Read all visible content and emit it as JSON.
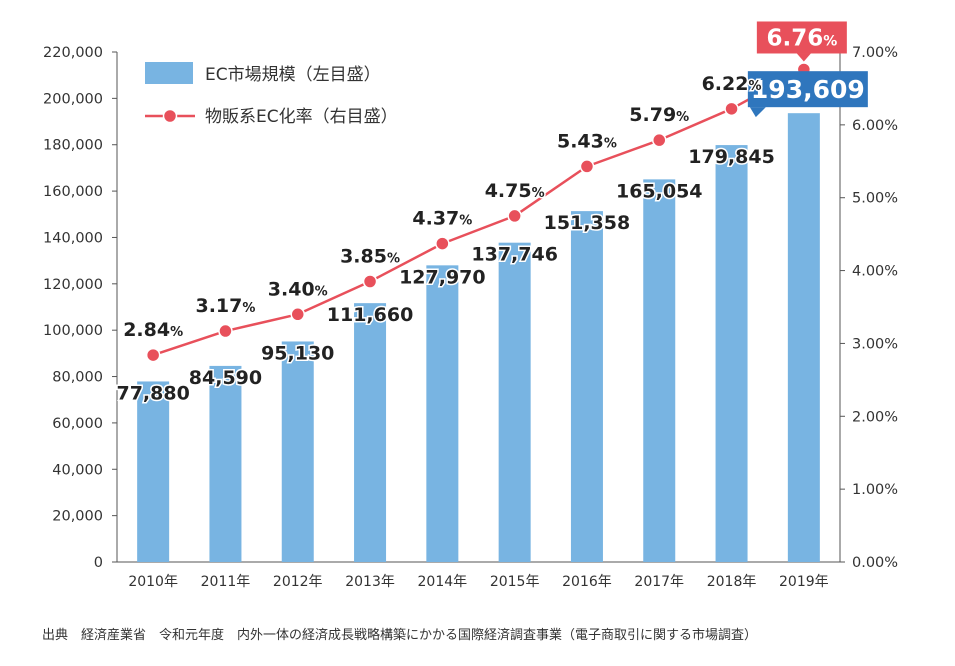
{
  "chart_data": {
    "type": "bar",
    "categories": [
      "2010年",
      "2011年",
      "2012年",
      "2013年",
      "2014年",
      "2015年",
      "2016年",
      "2017年",
      "2018年",
      "2019年"
    ],
    "series": [
      {
        "name": "EC市場規模（左目盛）",
        "type": "bar",
        "axis": "left",
        "values": [
          77880,
          84590,
          95130,
          111660,
          127970,
          137746,
          151358,
          165054,
          179845,
          193609
        ],
        "value_labels": [
          "77,880",
          "84,590",
          "95,130",
          "111,660",
          "127,970",
          "137,746",
          "151,358",
          "165,054",
          "179,845",
          "193,609"
        ],
        "color": "#78b4e2",
        "highlight_color": "#2f76bd"
      },
      {
        "name": "物販系EC化率（右目盛）",
        "type": "line",
        "axis": "right",
        "values": [
          2.84,
          3.17,
          3.4,
          3.85,
          4.37,
          4.75,
          5.43,
          5.79,
          6.22,
          6.76
        ],
        "value_labels": [
          "2.84",
          "3.17",
          "3.40",
          "3.85",
          "4.37",
          "4.75",
          "5.43",
          "5.79",
          "6.22",
          "6.76"
        ],
        "value_suffix": "%",
        "color": "#e8505b",
        "highlight_color": "#e8505b"
      }
    ],
    "y_left": {
      "ylim": [
        0,
        220000
      ],
      "ticks": [
        "0",
        "20,000",
        "40,000",
        "60,000",
        "80,000",
        "100,000",
        "120,000",
        "140,000",
        "160,000",
        "180,000",
        "200,000",
        "220,000"
      ]
    },
    "y_right": {
      "ylim": [
        0,
        7
      ],
      "ticks": [
        "0.00%",
        "1.00%",
        "2.00%",
        "3.00%",
        "4.00%",
        "5.00%",
        "6.00%",
        "7.00%"
      ]
    },
    "legend_position": "top-left",
    "grid": false,
    "title": "",
    "xlabel": "",
    "ylabel": ""
  },
  "source_note": "出典　経済産業省　令和元年度　内外一体の経済成長戦略構築にかかる国際経済調査事業（電子商取引に関する市場調査）"
}
